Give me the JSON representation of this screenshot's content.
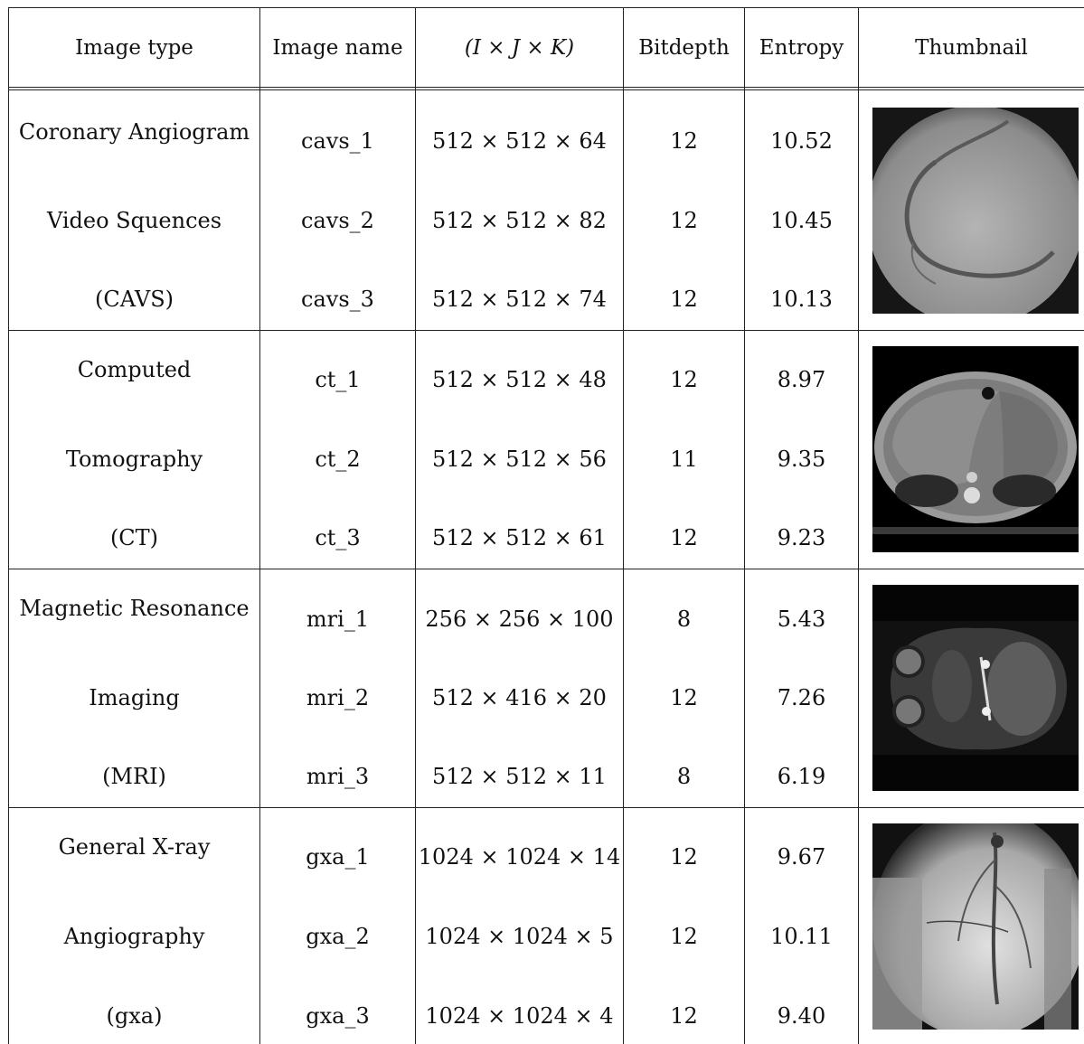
{
  "headers": [
    "Image type",
    "Image name",
    "(I × J × K)",
    "Bitdepth",
    "Entropy",
    "Thumbnail"
  ],
  "groups": [
    {
      "type_lines": [
        "Coronary Angiogram",
        "Video Squences",
        "(CAVS)"
      ],
      "thumbnail_icon": "coronary-angiogram-thumbnail",
      "rows": [
        {
          "name": "cavs_1",
          "dims": "512 × 512 × 64",
          "bitdepth": "12",
          "entropy": "10.52"
        },
        {
          "name": "cavs_2",
          "dims": "512 × 512 × 82",
          "bitdepth": "12",
          "entropy": "10.45"
        },
        {
          "name": "cavs_3",
          "dims": "512 × 512 × 74",
          "bitdepth": "12",
          "entropy": "10.13"
        }
      ]
    },
    {
      "type_lines": [
        "Computed",
        "Tomography",
        "(CT)"
      ],
      "thumbnail_icon": "ct-scan-thumbnail",
      "rows": [
        {
          "name": "ct_1",
          "dims": "512 × 512 × 48",
          "bitdepth": "12",
          "entropy": "8.97"
        },
        {
          "name": "ct_2",
          "dims": "512 × 512 × 56",
          "bitdepth": "11",
          "entropy": "9.35"
        },
        {
          "name": "ct_3",
          "dims": "512 × 512 × 61",
          "bitdepth": "12",
          "entropy": "9.23"
        }
      ]
    },
    {
      "type_lines": [
        "Magnetic Resonance",
        "Imaging",
        "(MRI)"
      ],
      "thumbnail_icon": "mri-scan-thumbnail",
      "rows": [
        {
          "name": "mri_1",
          "dims": "256 × 256 × 100",
          "bitdepth": "8",
          "entropy": "5.43"
        },
        {
          "name": "mri_2",
          "dims": "512 × 416 × 20",
          "bitdepth": "12",
          "entropy": "7.26"
        },
        {
          "name": "mri_3",
          "dims": "512 × 512 × 11",
          "bitdepth": "8",
          "entropy": "6.19"
        }
      ]
    },
    {
      "type_lines": [
        "General X-ray",
        "Angiography",
        "(gxa)"
      ],
      "thumbnail_icon": "xray-angiography-thumbnail",
      "rows": [
        {
          "name": "gxa_1",
          "dims": "1024 × 1024 × 14",
          "bitdepth": "12",
          "entropy": "9.67"
        },
        {
          "name": "gxa_2",
          "dims": "1024 × 1024 × 5",
          "bitdepth": "12",
          "entropy": "10.11"
        },
        {
          "name": "gxa_3",
          "dims": "1024 × 1024 × 4",
          "bitdepth": "12",
          "entropy": "9.40"
        }
      ]
    }
  ]
}
